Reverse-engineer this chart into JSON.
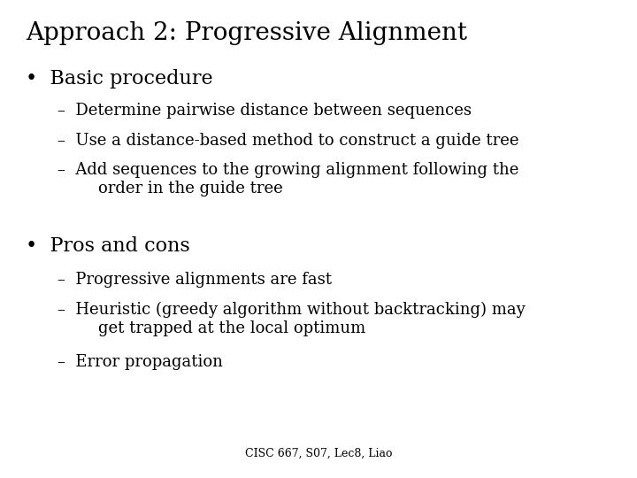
{
  "title": "Approach 2: Progressive Alignment",
  "background_color": "#ffffff",
  "text_color": "#000000",
  "title_fontsize": 20,
  "bullet_fontsize": 16,
  "sub_fontsize": 13,
  "footer_fontsize": 9,
  "footer": "CISC 667, S07, Lec8, Liao",
  "bullet1": "Basic procedure",
  "bullet1_subs": [
    "Determine pairwise distance between sequences",
    "Use a distance-based method to construct a guide tree",
    "Add sequences to the growing alignment following the\n        order in the guide tree"
  ],
  "bullet2": "Pros and cons",
  "bullet2_subs": [
    "Progressive alignments are fast",
    "Heuristic (greedy algorithm without backtracking) may\n        get trapped at the local optimum",
    "Error propagation"
  ],
  "font_family": "DejaVu Serif"
}
